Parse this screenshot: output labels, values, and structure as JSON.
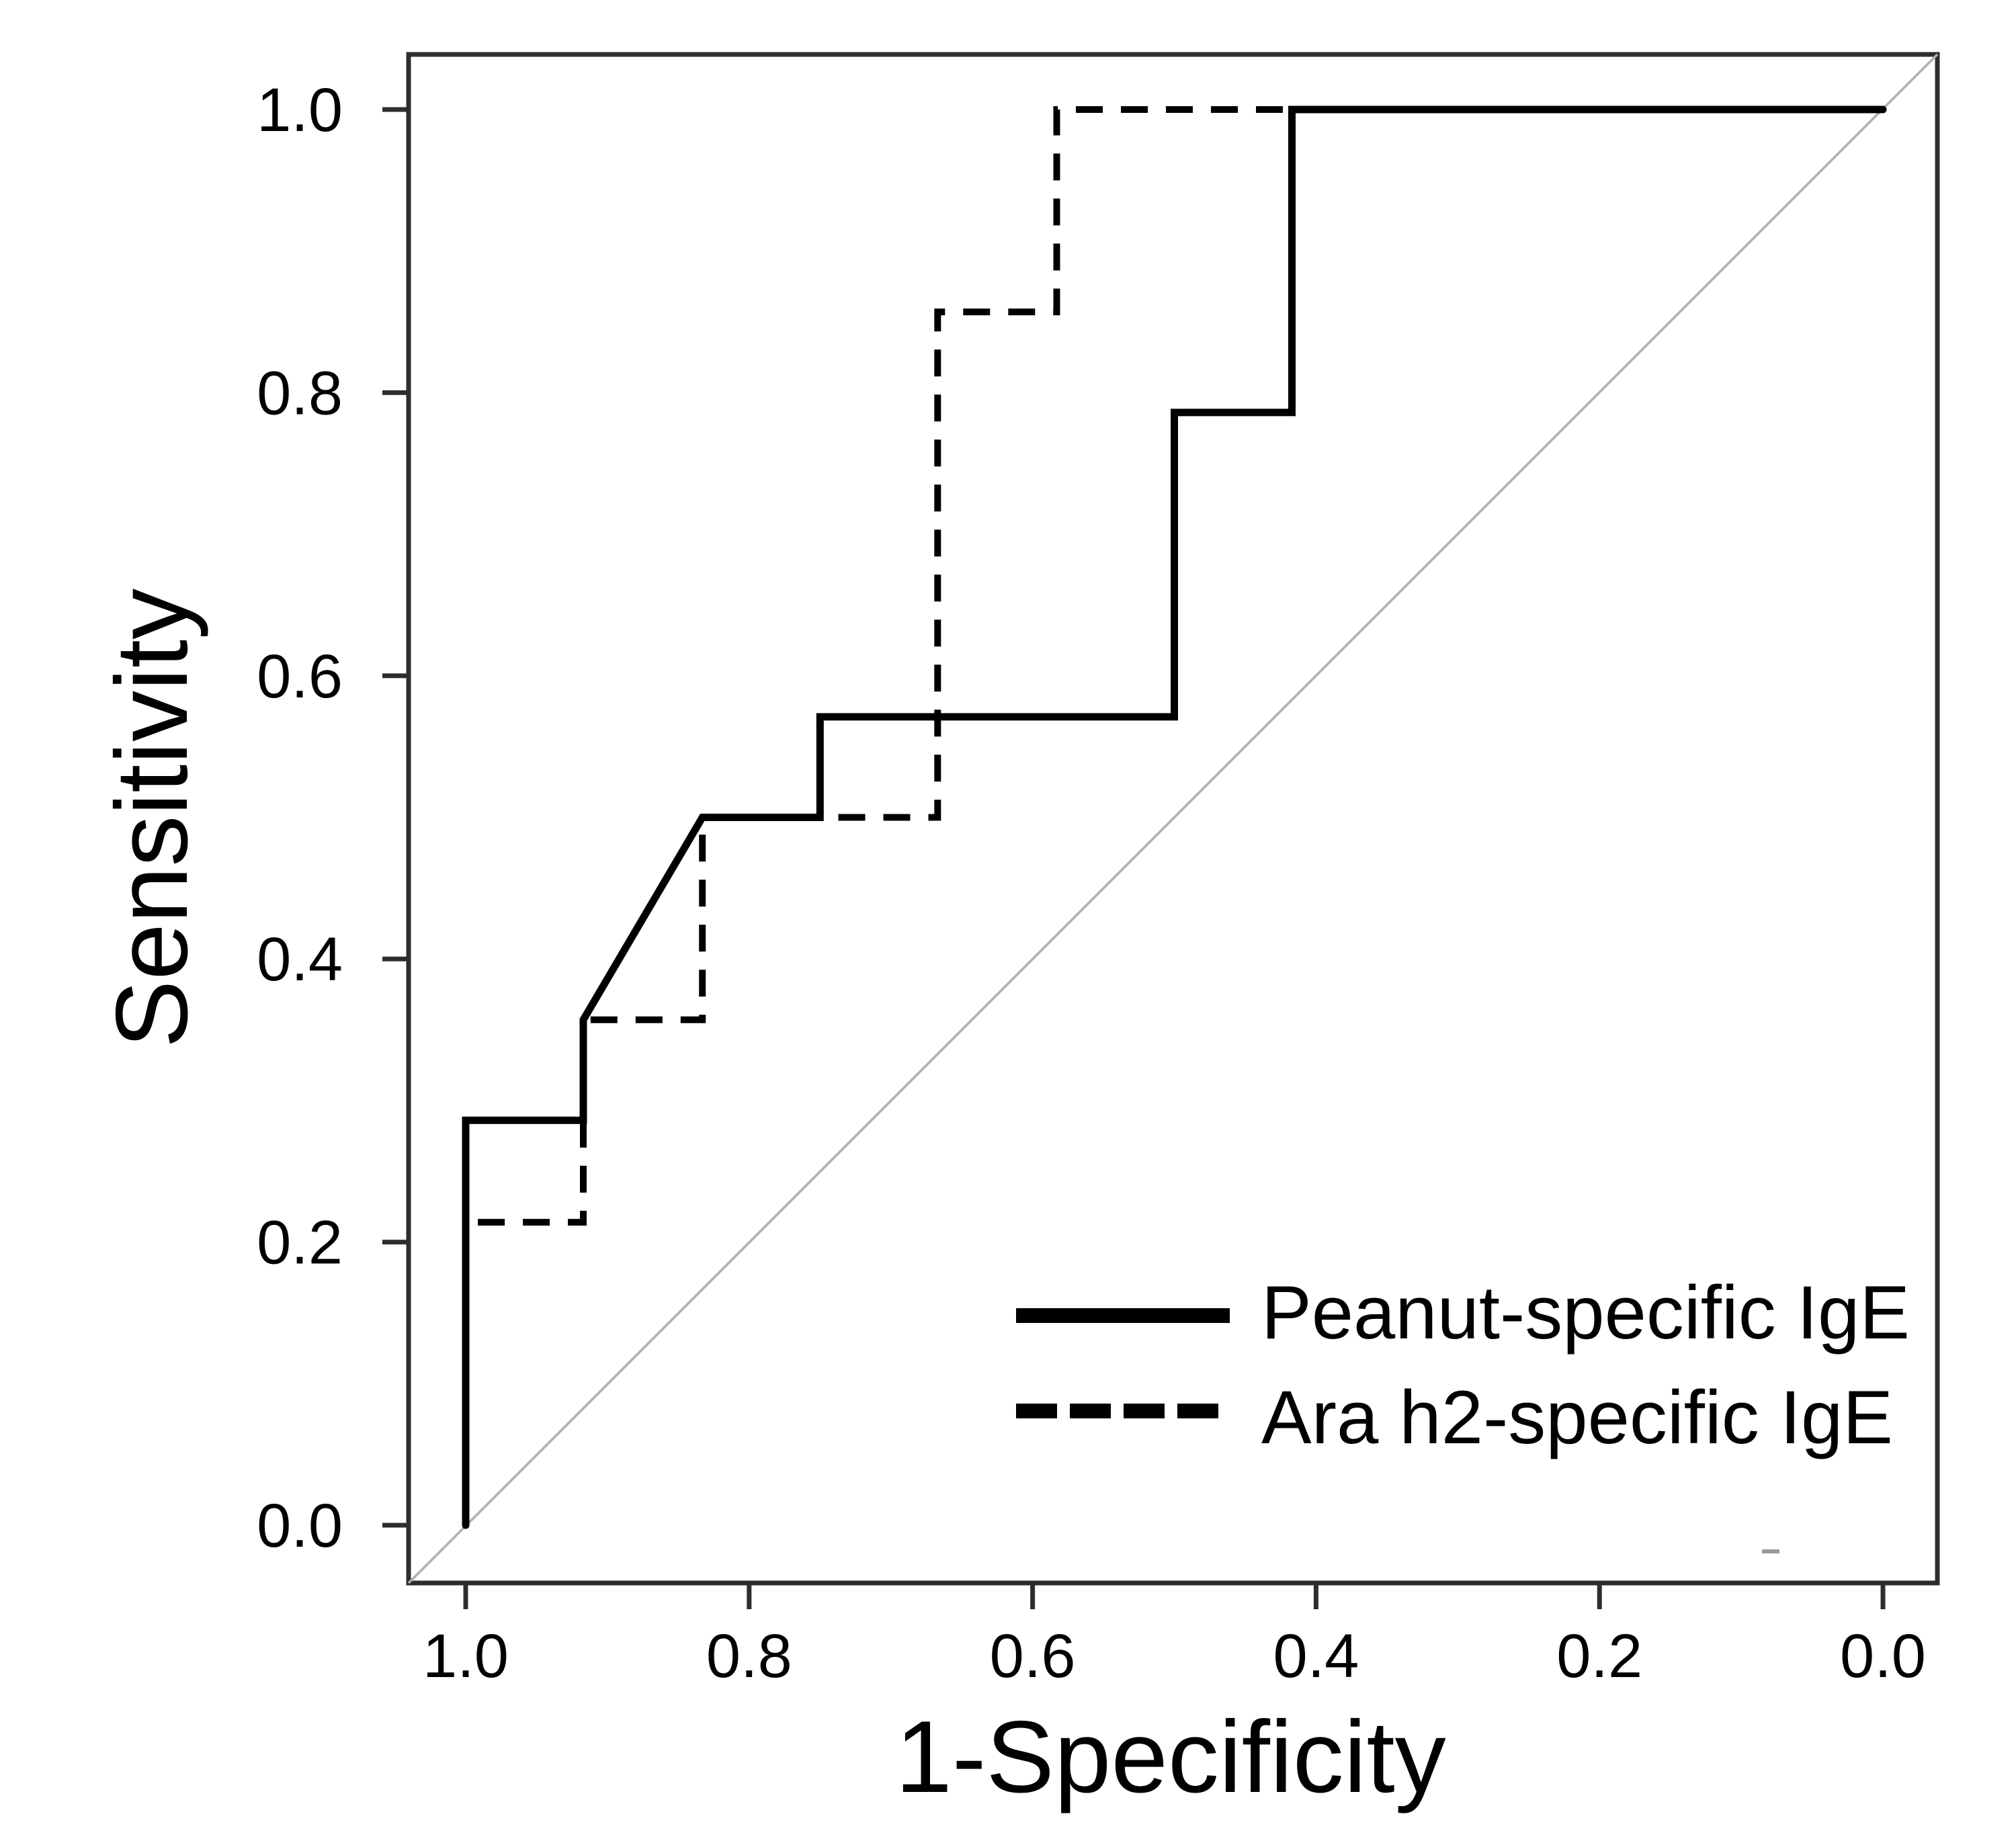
{
  "chart_data": {
    "type": "line",
    "subtype": "roc-curve",
    "title": "",
    "xlabel": "1-Specificity",
    "ylabel": "Sensitivity",
    "x_axis": {
      "range": [
        1.0,
        0.0
      ],
      "reversed": true,
      "ticks": [
        1.0,
        0.8,
        0.6,
        0.4,
        0.2,
        0.0
      ],
      "tick_labels": [
        "1.0",
        "0.8",
        "0.6",
        "0.4",
        "0.2",
        "0.0"
      ]
    },
    "y_axis": {
      "range": [
        0.0,
        1.0
      ],
      "ticks": [
        1.0,
        0.8,
        0.6,
        0.4,
        0.2,
        0.0
      ],
      "tick_labels": [
        "1.0",
        "0.8",
        "0.6",
        "0.4",
        "0.2",
        "0.0"
      ]
    },
    "grid": false,
    "legend_position": "inside-lower-right",
    "series": [
      {
        "name": "Peanut-specific IgE",
        "line_style": "solid",
        "color": "#000000",
        "points": [
          [
            1.0,
            0.0
          ],
          [
            1.0,
            0.286
          ],
          [
            0.917,
            0.286
          ],
          [
            0.917,
            0.357
          ],
          [
            0.833,
            0.5
          ],
          [
            0.75,
            0.5
          ],
          [
            0.75,
            0.571
          ],
          [
            0.5,
            0.571
          ],
          [
            0.5,
            0.786
          ],
          [
            0.417,
            0.786
          ],
          [
            0.417,
            1.0
          ],
          [
            0.0,
            1.0
          ]
        ]
      },
      {
        "name": "Ara h2-specific IgE",
        "line_style": "dashed",
        "color": "#000000",
        "points": [
          [
            1.0,
            0.0
          ],
          [
            1.0,
            0.214
          ],
          [
            0.917,
            0.214
          ],
          [
            0.917,
            0.357
          ],
          [
            0.833,
            0.357
          ],
          [
            0.833,
            0.5
          ],
          [
            0.667,
            0.5
          ],
          [
            0.667,
            0.857
          ],
          [
            0.583,
            0.857
          ],
          [
            0.583,
            1.0
          ],
          [
            0.0,
            1.0
          ]
        ]
      }
    ],
    "reference_line": {
      "name": "chance diagonal",
      "from": [
        1.0,
        0.0
      ],
      "to": [
        0.0,
        1.0
      ],
      "color": "#aeaeae"
    }
  }
}
